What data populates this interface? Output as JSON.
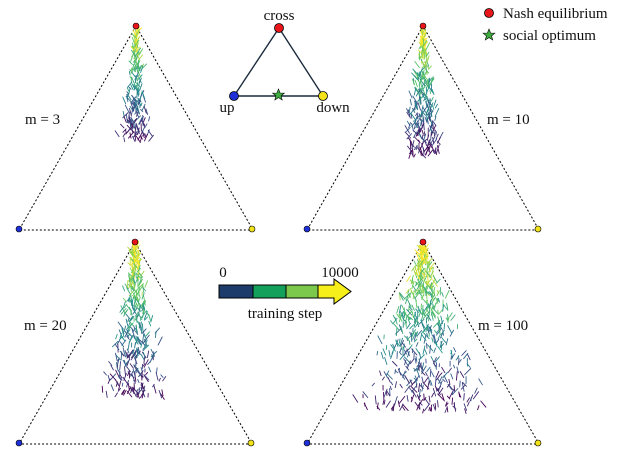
{
  "legend": {
    "items": [
      {
        "label": "Nash equilibrium",
        "marker": "circle",
        "color": "#e8161b"
      },
      {
        "label": "social optimum",
        "marker": "star",
        "color": "#3faa3f"
      }
    ]
  },
  "schematic": {
    "vertices": {
      "top": "cross",
      "left": "up",
      "right": "down"
    },
    "vertex_colors": {
      "top": "#e8161b",
      "left": "#1f2fd6",
      "right": "#f2e21a"
    },
    "star_color": "#3faa3f"
  },
  "colorbar": {
    "min_label": "0",
    "max_label": "10000",
    "caption": "training step",
    "colors": [
      "#1d3c6b",
      "#13a05a",
      "#7bc84d",
      "#f7ef1a"
    ]
  },
  "panels": [
    {
      "label": "m = 3",
      "spread": 0.28,
      "tail": 0.55,
      "density": 220
    },
    {
      "label": "m = 10",
      "spread": 0.32,
      "tail": 0.62,
      "density": 320
    },
    {
      "label": "m = 20",
      "spread": 0.42,
      "tail": 0.75,
      "density": 420
    },
    {
      "label": "m = 100",
      "spread": 0.78,
      "tail": 0.82,
      "density": 620
    }
  ],
  "vertex_colors": {
    "top": "#e8161b",
    "left": "#1f2fd6",
    "right": "#f2e21a"
  }
}
